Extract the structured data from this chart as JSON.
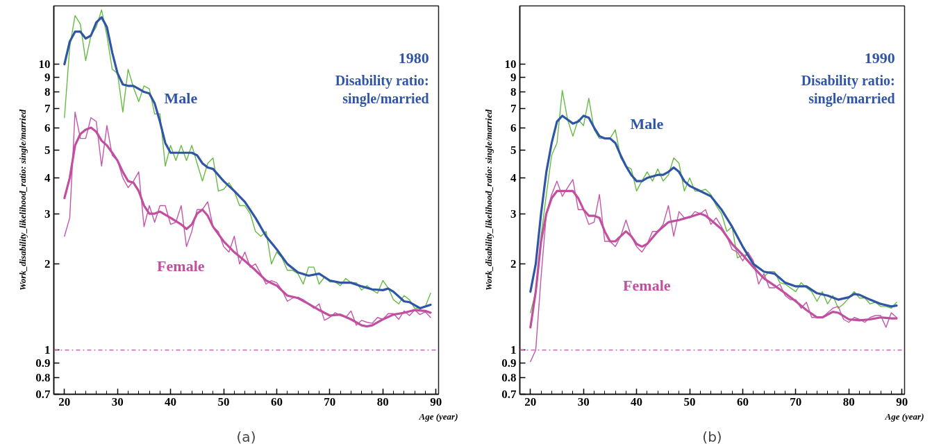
{
  "chart_data": [
    {
      "type": "line",
      "title": "(a)",
      "xlabel": "Age (year)",
      "ylabel": "Work_disability_likelihood_ratio: single/married",
      "log": true,
      "grid": false,
      "xlim": [
        18,
        90.5
      ],
      "ylim": [
        0.7,
        16
      ],
      "xticks": [
        20,
        30,
        40,
        50,
        60,
        70,
        80,
        90
      ],
      "yticks": [
        0.7,
        0.8,
        0.9,
        1,
        2,
        3,
        4,
        5,
        6,
        7,
        8,
        9,
        10
      ],
      "annotations": [
        "1980",
        "Disability ratio:",
        "single/married"
      ],
      "ref_lines": [
        {
          "axis": "y",
          "value": 1,
          "color": "#cc66bb",
          "line_style": "dashdot"
        }
      ],
      "x": [
        20,
        21,
        22,
        23,
        24,
        25,
        26,
        27,
        28,
        29,
        30,
        31,
        32,
        33,
        34,
        35,
        36,
        37,
        38,
        39,
        40,
        41,
        42,
        43,
        44,
        45,
        46,
        47,
        48,
        49,
        50,
        51,
        52,
        53,
        54,
        55,
        56,
        57,
        58,
        59,
        60,
        61,
        62,
        63,
        64,
        65,
        66,
        67,
        68,
        69,
        70,
        71,
        72,
        73,
        74,
        75,
        76,
        77,
        78,
        79,
        80,
        81,
        82,
        83,
        84,
        85,
        86,
        87,
        88,
        89
      ],
      "series": [
        {
          "color": "#66bb44",
          "values": [
            6.5,
            11.5,
            14.8,
            13.8,
            10.3,
            12.6,
            13.5,
            15.5,
            12.6,
            9.6,
            9.3,
            6.8,
            9.6,
            8.3,
            7.4,
            8.4,
            8.2,
            6.7,
            6.7,
            4.4,
            5.2,
            4.6,
            5.2,
            4.6,
            5.2,
            4.5,
            3.9,
            4.5,
            4.7,
            3.6,
            3.65,
            3.85,
            3.6,
            3.2,
            3.2,
            3.0,
            2.6,
            2.5,
            2.6,
            2.0,
            2.2,
            2.1,
            1.9,
            1.9,
            1.85,
            1.7,
            1.95,
            1.95,
            1.7,
            1.8,
            1.73,
            1.73,
            1.68,
            1.78,
            1.72,
            1.72,
            1.62,
            1.68,
            1.62,
            1.58,
            1.75,
            1.65,
            1.5,
            1.45,
            1.55,
            1.5,
            1.4,
            1.4,
            1.42,
            1.58
          ]
        },
        {
          "color": "#c455a8",
          "values": [
            2.5,
            2.9,
            6.8,
            5.5,
            5.5,
            6.5,
            6.3,
            4.4,
            6.1,
            4.8,
            4.6,
            4.0,
            3.7,
            3.9,
            4.2,
            2.7,
            3.2,
            2.8,
            3.2,
            3.2,
            2.75,
            2.8,
            3.2,
            2.3,
            2.6,
            3.1,
            3.1,
            3.3,
            2.7,
            2.6,
            2.3,
            2.2,
            2.5,
            2.0,
            2.2,
            1.95,
            2.0,
            1.85,
            1.7,
            1.75,
            1.72,
            1.62,
            1.48,
            1.52,
            1.53,
            1.5,
            1.45,
            1.4,
            1.45,
            1.27,
            1.3,
            1.35,
            1.32,
            1.3,
            1.37,
            1.22,
            1.27,
            1.25,
            1.24,
            1.3,
            1.28,
            1.34,
            1.34,
            1.28,
            1.37,
            1.32,
            1.38,
            1.33,
            1.36,
            1.3
          ]
        },
        {
          "name": "Male",
          "color": "#2f55a4",
          "x": [
            20,
            21,
            22,
            23,
            24,
            25,
            26,
            27,
            28,
            29,
            30,
            31,
            32,
            33,
            34,
            35,
            36,
            37,
            38,
            39,
            40,
            42,
            44,
            45,
            46,
            47,
            48,
            50,
            52,
            54,
            56,
            58,
            60,
            62,
            64,
            66,
            68,
            70,
            72,
            74,
            76,
            78,
            80,
            81,
            82,
            84,
            85,
            87,
            89
          ],
          "values": [
            10,
            12,
            13,
            13,
            12.3,
            12.6,
            14,
            14.6,
            13.5,
            11,
            9.3,
            8.5,
            8.4,
            8.4,
            8.2,
            8.0,
            7.9,
            7.3,
            6.3,
            5.3,
            4.9,
            4.9,
            4.9,
            4.8,
            4.5,
            4.35,
            4.3,
            3.9,
            3.6,
            3.3,
            2.9,
            2.5,
            2.25,
            2.0,
            1.87,
            1.82,
            1.85,
            1.75,
            1.72,
            1.72,
            1.67,
            1.63,
            1.62,
            1.64,
            1.6,
            1.48,
            1.47,
            1.4,
            1.44
          ]
        },
        {
          "name": "Female",
          "color": "#c04fa0",
          "x": [
            20,
            21,
            22,
            23,
            24,
            25,
            26,
            27,
            28,
            29,
            30,
            31,
            32,
            33,
            34,
            35,
            36,
            37,
            38,
            40,
            42,
            43,
            44,
            45,
            46,
            47,
            48,
            50,
            52,
            54,
            56,
            58,
            60,
            62,
            64,
            66,
            68,
            70,
            72,
            74,
            76,
            77,
            78,
            80,
            82,
            84,
            86,
            88,
            89
          ],
          "values": [
            3.4,
            4,
            5.2,
            5.7,
            5.9,
            6.0,
            5.8,
            5.4,
            5.2,
            4.9,
            4.6,
            4.2,
            3.9,
            3.85,
            3.6,
            3.2,
            3.0,
            3.0,
            3.05,
            2.9,
            2.75,
            2.65,
            2.75,
            3.0,
            3.1,
            2.95,
            2.7,
            2.4,
            2.2,
            2.05,
            1.9,
            1.75,
            1.68,
            1.55,
            1.52,
            1.45,
            1.38,
            1.32,
            1.33,
            1.28,
            1.22,
            1.21,
            1.22,
            1.28,
            1.33,
            1.35,
            1.38,
            1.37,
            1.35
          ]
        }
      ]
    },
    {
      "type": "line",
      "title": "(b)",
      "xlabel": "Age (year)",
      "ylabel": "Work_disability_likelihood_ratio: single/married",
      "log": true,
      "grid": false,
      "xlim": [
        18,
        90.5
      ],
      "ylim": [
        0.7,
        16
      ],
      "xticks": [
        20,
        30,
        40,
        50,
        60,
        70,
        80,
        90
      ],
      "yticks": [
        0.7,
        0.8,
        0.9,
        1,
        2,
        3,
        4,
        5,
        6,
        7,
        8,
        9,
        10
      ],
      "annotations": [
        "1990",
        "Disability ratio:",
        "single/married"
      ],
      "ref_lines": [
        {
          "axis": "y",
          "value": 1,
          "color": "#cc66bb",
          "line_style": "dashdot"
        }
      ],
      "x": [
        20,
        21,
        22,
        23,
        24,
        25,
        26,
        27,
        28,
        29,
        30,
        31,
        32,
        33,
        34,
        35,
        36,
        37,
        38,
        39,
        40,
        41,
        42,
        43,
        44,
        45,
        46,
        47,
        48,
        49,
        50,
        51,
        52,
        53,
        54,
        55,
        56,
        57,
        58,
        59,
        60,
        61,
        62,
        63,
        64,
        65,
        66,
        67,
        68,
        69,
        70,
        71,
        72,
        73,
        74,
        75,
        76,
        77,
        78,
        79,
        80,
        81,
        82,
        83,
        84,
        85,
        86,
        87,
        88,
        89
      ],
      "series": [
        {
          "color": "#66bb44",
          "values": [
            1.35,
            1.6,
            2.5,
            3.5,
            4.8,
            5.3,
            8.1,
            6.4,
            5.6,
            6.4,
            6.1,
            7.6,
            5.9,
            5.5,
            5.5,
            5.5,
            5.9,
            4.7,
            4.4,
            4.3,
            3.6,
            3.9,
            4.2,
            3.9,
            4.3,
            3.9,
            4.1,
            4.7,
            4.5,
            3.6,
            4.0,
            3.6,
            3.6,
            3.65,
            3.5,
            3.2,
            3.0,
            2.6,
            2.7,
            2.1,
            2.15,
            2.15,
            2.0,
            1.85,
            1.8,
            1.88,
            1.88,
            1.72,
            1.7,
            1.65,
            1.6,
            1.72,
            1.65,
            1.6,
            1.48,
            1.6,
            1.45,
            1.55,
            1.4,
            1.45,
            1.52,
            1.6,
            1.52,
            1.52,
            1.45,
            1.47,
            1.42,
            1.42,
            1.4,
            1.47
          ]
        },
        {
          "color": "#c455a8",
          "values": [
            0.91,
            1.0,
            1.8,
            3.0,
            3.5,
            3.9,
            3.45,
            3.7,
            3.95,
            3.1,
            3.1,
            2.75,
            2.8,
            3.5,
            2.4,
            2.4,
            2.3,
            2.5,
            2.85,
            2.5,
            2.3,
            2.2,
            2.35,
            2.6,
            2.6,
            2.75,
            3.2,
            2.5,
            3.05,
            2.9,
            2.9,
            3.05,
            3.0,
            3.1,
            2.75,
            2.9,
            2.7,
            2.5,
            2.25,
            2.2,
            2.05,
            2.2,
            2.05,
            1.7,
            1.85,
            1.65,
            1.65,
            1.7,
            1.55,
            1.5,
            1.5,
            1.4,
            1.47,
            1.3,
            1.3,
            1.3,
            1.35,
            1.4,
            1.42,
            1.28,
            1.25,
            1.3,
            1.28,
            1.25,
            1.3,
            1.32,
            1.32,
            1.2,
            1.35,
            1.3
          ]
        },
        {
          "name": "Male",
          "color": "#2f55a4",
          "x": [
            20,
            21,
            22,
            23,
            24,
            25,
            26,
            27,
            28,
            29,
            30,
            31,
            32,
            33,
            34,
            35,
            36,
            37,
            38,
            39,
            40,
            41,
            42,
            44,
            45,
            46,
            47,
            48,
            49,
            50,
            52,
            54,
            56,
            58,
            60,
            62,
            64,
            66,
            68,
            70,
            72,
            74,
            76,
            78,
            80,
            81,
            82,
            84,
            86,
            88,
            89
          ],
          "values": [
            1.6,
            2.0,
            3.0,
            4.2,
            5.3,
            6.3,
            6.6,
            6.4,
            6.2,
            6.3,
            6.6,
            6.5,
            6.0,
            5.6,
            5.5,
            5.5,
            5.3,
            4.8,
            4.4,
            4.1,
            3.9,
            3.9,
            4.0,
            4.1,
            4.1,
            4.2,
            4.35,
            4.2,
            3.9,
            3.75,
            3.6,
            3.45,
            3.1,
            2.7,
            2.3,
            2.0,
            1.88,
            1.85,
            1.72,
            1.67,
            1.67,
            1.58,
            1.55,
            1.5,
            1.53,
            1.57,
            1.56,
            1.5,
            1.45,
            1.42,
            1.43
          ]
        },
        {
          "name": "Female",
          "color": "#c04fa0",
          "x": [
            20,
            21,
            22,
            23,
            24,
            25,
            26,
            27,
            28,
            29,
            30,
            31,
            32,
            33,
            34,
            35,
            36,
            37,
            38,
            39,
            40,
            41,
            42,
            44,
            46,
            48,
            50,
            52,
            53,
            54,
            56,
            58,
            60,
            62,
            64,
            66,
            68,
            70,
            72,
            74,
            75,
            76,
            77,
            78,
            80,
            82,
            84,
            86,
            88,
            89
          ],
          "values": [
            1.2,
            1.6,
            2.4,
            3.0,
            3.4,
            3.6,
            3.6,
            3.6,
            3.6,
            3.4,
            3.1,
            2.95,
            2.95,
            2.9,
            2.6,
            2.4,
            2.4,
            2.5,
            2.6,
            2.5,
            2.35,
            2.3,
            2.35,
            2.6,
            2.8,
            2.85,
            2.92,
            3.0,
            2.95,
            2.85,
            2.65,
            2.35,
            2.15,
            1.95,
            1.78,
            1.68,
            1.58,
            1.48,
            1.38,
            1.3,
            1.3,
            1.33,
            1.36,
            1.35,
            1.28,
            1.27,
            1.28,
            1.3,
            1.29,
            1.29
          ]
        }
      ]
    }
  ]
}
